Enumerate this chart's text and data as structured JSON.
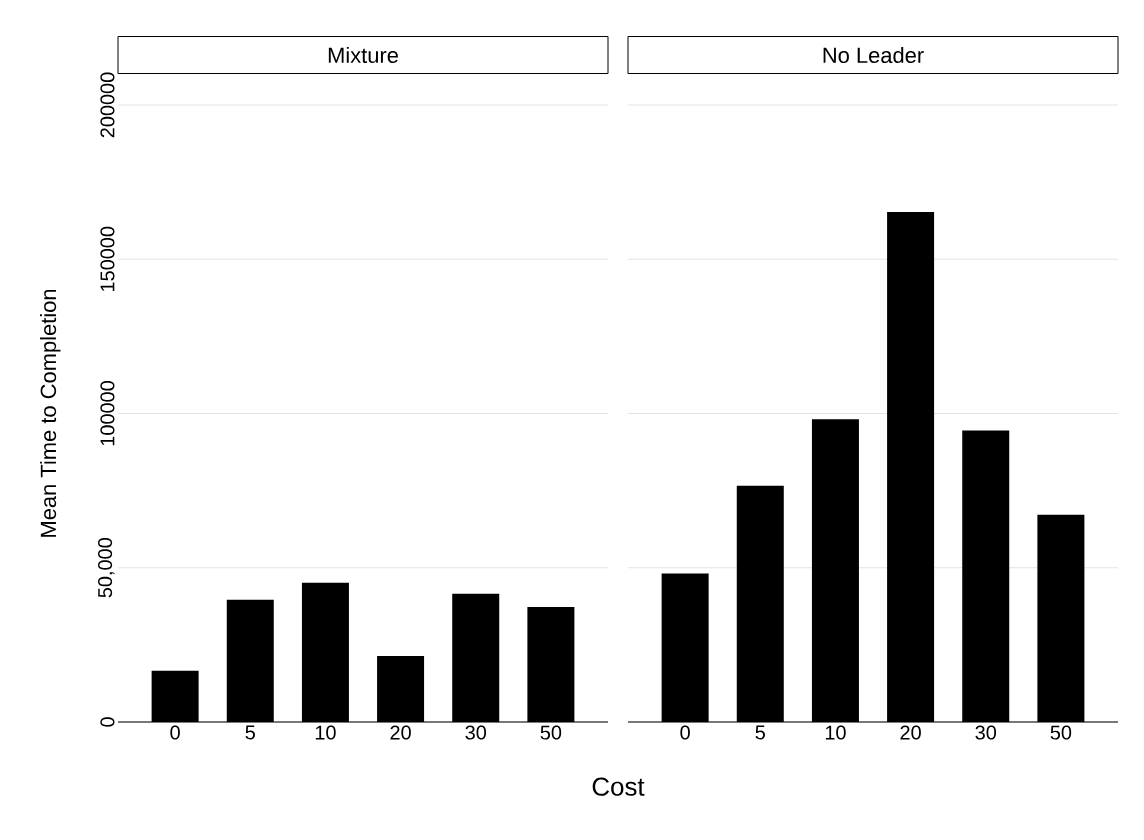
{
  "chart_data": [
    {
      "type": "bar",
      "title": "Mixture",
      "xlabel": "Cost",
      "ylabel": "Mean Time to Completion",
      "categories": [
        "0",
        "5",
        "10",
        "20",
        "30",
        "50"
      ],
      "values": [
        16600,
        39600,
        45100,
        21400,
        41600,
        37300
      ],
      "color": "#000000",
      "ylim": [
        0,
        200000
      ],
      "yticks": [
        0,
        {
          "value": 50000,
          "label": "50,000"
        },
        100000,
        150000,
        200000
      ],
      "grid": "y"
    },
    {
      "type": "bar",
      "title": "No Leader",
      "categories": [
        "0",
        "5",
        "10",
        "20",
        "30",
        "50"
      ],
      "values": [
        48100,
        76600,
        98100,
        165300,
        94500,
        67200
      ],
      "color": "#000000",
      "ylim": [
        0,
        200000
      ],
      "yticks": [
        0,
        50000,
        100000,
        150000,
        200000
      ],
      "grid": "y",
      "tick_labels": "x"
    }
  ]
}
